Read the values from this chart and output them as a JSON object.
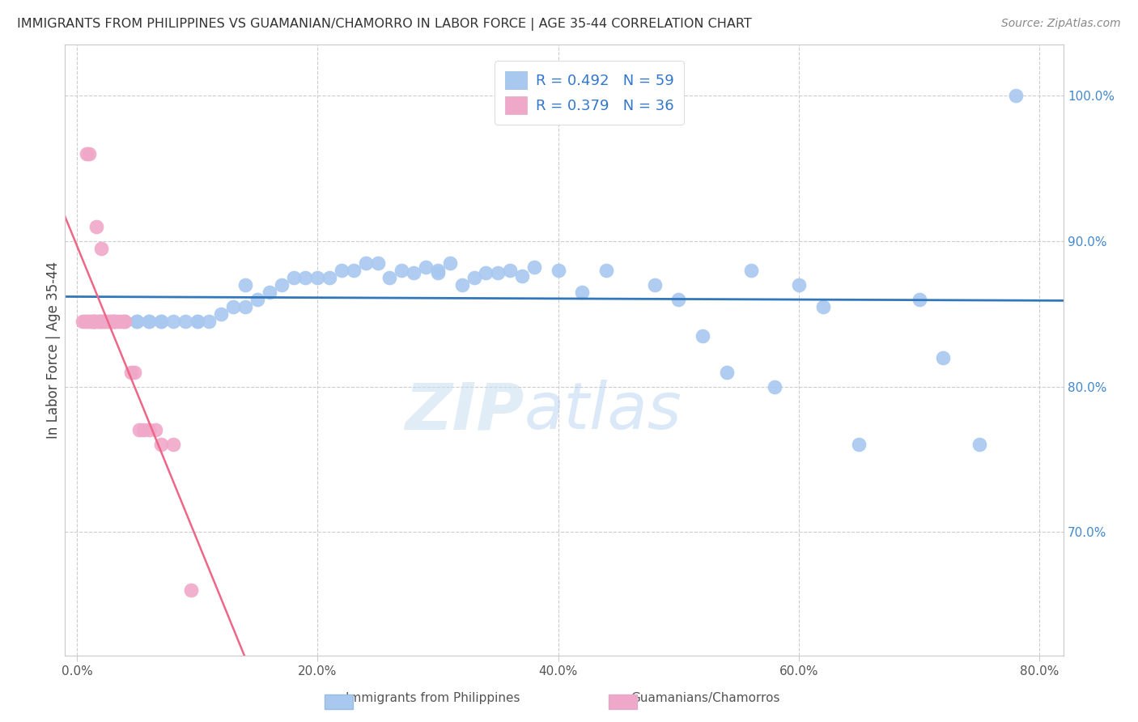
{
  "title": "IMMIGRANTS FROM PHILIPPINES VS GUAMANIAN/CHAMORRO IN LABOR FORCE | AGE 35-44 CORRELATION CHART",
  "source": "Source: ZipAtlas.com",
  "ylabel": "In Labor Force | Age 35-44",
  "x_ticks": [
    "0.0%",
    "20.0%",
    "40.0%",
    "60.0%",
    "80.0%"
  ],
  "x_tick_vals": [
    0.0,
    0.2,
    0.4,
    0.6,
    0.8
  ],
  "y_ticks_right": [
    "100.0%",
    "90.0%",
    "80.0%",
    "70.0%"
  ],
  "y_tick_vals": [
    1.0,
    0.9,
    0.8,
    0.7
  ],
  "xlim": [
    -0.01,
    0.82
  ],
  "ylim": [
    0.615,
    1.035
  ],
  "blue_R": 0.492,
  "blue_N": 59,
  "pink_R": 0.379,
  "pink_N": 36,
  "blue_color": "#a8c8f0",
  "pink_color": "#f0a8c8",
  "blue_line_color": "#3377bb",
  "pink_line_color": "#ee6688",
  "legend_text_color": "#3377cc",
  "background_color": "#ffffff",
  "blue_scatter_x": [
    0.02,
    0.03,
    0.04,
    0.05,
    0.05,
    0.06,
    0.06,
    0.07,
    0.07,
    0.08,
    0.09,
    0.1,
    0.1,
    0.11,
    0.12,
    0.13,
    0.14,
    0.14,
    0.15,
    0.16,
    0.17,
    0.18,
    0.19,
    0.2,
    0.21,
    0.22,
    0.23,
    0.24,
    0.25,
    0.26,
    0.27,
    0.28,
    0.29,
    0.3,
    0.3,
    0.31,
    0.32,
    0.33,
    0.34,
    0.35,
    0.36,
    0.37,
    0.38,
    0.4,
    0.42,
    0.44,
    0.48,
    0.5,
    0.52,
    0.54,
    0.56,
    0.58,
    0.6,
    0.62,
    0.65,
    0.7,
    0.72,
    0.75,
    0.78
  ],
  "blue_scatter_y": [
    0.845,
    0.845,
    0.845,
    0.845,
    0.845,
    0.845,
    0.845,
    0.845,
    0.845,
    0.845,
    0.845,
    0.845,
    0.845,
    0.845,
    0.85,
    0.855,
    0.855,
    0.87,
    0.86,
    0.865,
    0.87,
    0.875,
    0.875,
    0.875,
    0.875,
    0.88,
    0.88,
    0.885,
    0.885,
    0.875,
    0.88,
    0.878,
    0.882,
    0.878,
    0.88,
    0.885,
    0.87,
    0.875,
    0.878,
    0.878,
    0.88,
    0.876,
    0.882,
    0.88,
    0.865,
    0.88,
    0.87,
    0.86,
    0.835,
    0.81,
    0.88,
    0.8,
    0.87,
    0.855,
    0.76,
    0.86,
    0.82,
    0.76,
    1.0
  ],
  "pink_scatter_x": [
    0.005,
    0.007,
    0.008,
    0.008,
    0.01,
    0.01,
    0.012,
    0.013,
    0.014,
    0.015,
    0.015,
    0.016,
    0.018,
    0.018,
    0.02,
    0.02,
    0.022,
    0.023,
    0.025,
    0.027,
    0.028,
    0.03,
    0.031,
    0.033,
    0.035,
    0.038,
    0.04,
    0.045,
    0.048,
    0.052,
    0.055,
    0.06,
    0.065,
    0.07,
    0.08,
    0.095
  ],
  "pink_scatter_y": [
    0.845,
    0.845,
    0.845,
    0.96,
    0.845,
    0.96,
    0.845,
    0.845,
    0.845,
    0.845,
    0.845,
    0.91,
    0.845,
    0.845,
    0.845,
    0.895,
    0.845,
    0.845,
    0.845,
    0.845,
    0.845,
    0.845,
    0.845,
    0.845,
    0.845,
    0.845,
    0.845,
    0.81,
    0.81,
    0.77,
    0.77,
    0.77,
    0.77,
    0.76,
    0.76,
    0.66
  ]
}
